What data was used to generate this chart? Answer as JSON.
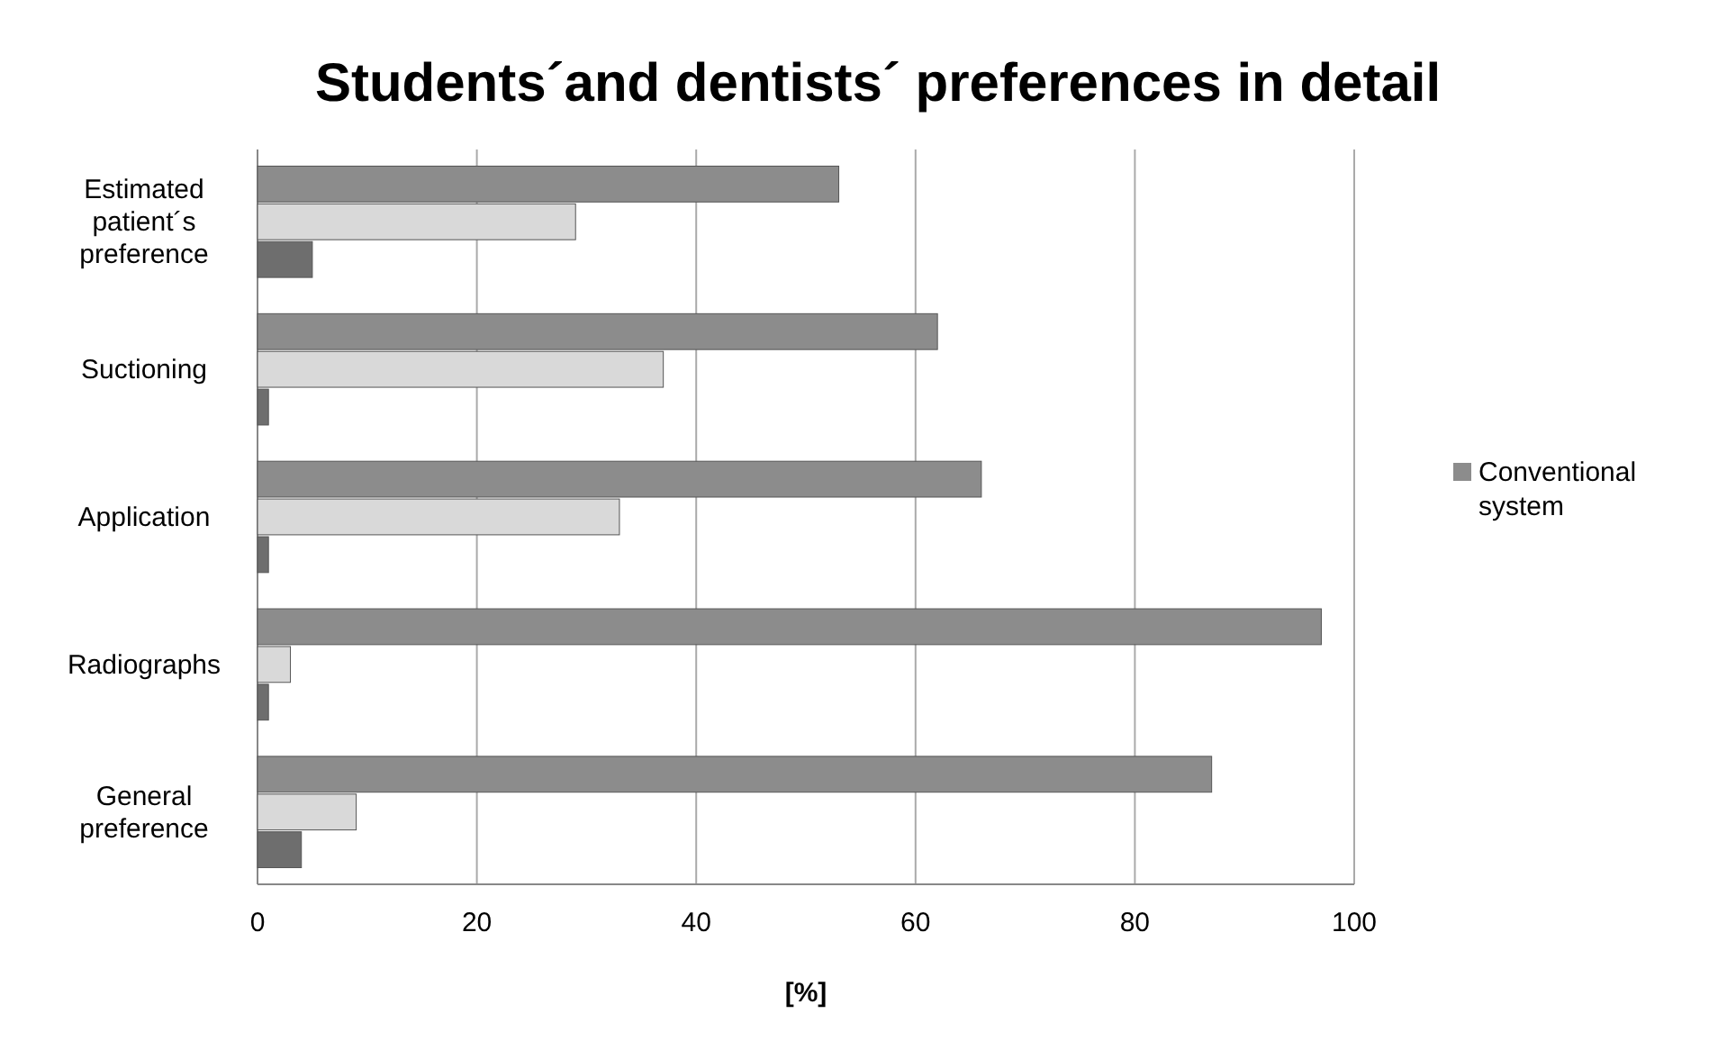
{
  "chart_data": {
    "type": "bar",
    "orientation": "horizontal",
    "title": "Students´and dentists´ preferences in detail",
    "xlabel": "[%]",
    "categories": [
      "Estimated patient´s preference",
      "Suctioning",
      "Application",
      "Radiographs",
      "General preference"
    ],
    "series": [
      {
        "name": "Conventional system",
        "color": "#8c8c8c",
        "values": [
          53,
          62,
          66,
          97,
          87
        ]
      },
      {
        "color": "#d9d9d9",
        "values": [
          29,
          37,
          33,
          3,
          9
        ]
      },
      {
        "color": "#6e6e6e",
        "values": [
          5,
          1,
          1,
          1,
          4
        ]
      }
    ],
    "xlim": [
      0,
      100
    ],
    "xticks": [
      0,
      20,
      40,
      60,
      80,
      100
    ],
    "grid": "x",
    "legend": "right"
  }
}
